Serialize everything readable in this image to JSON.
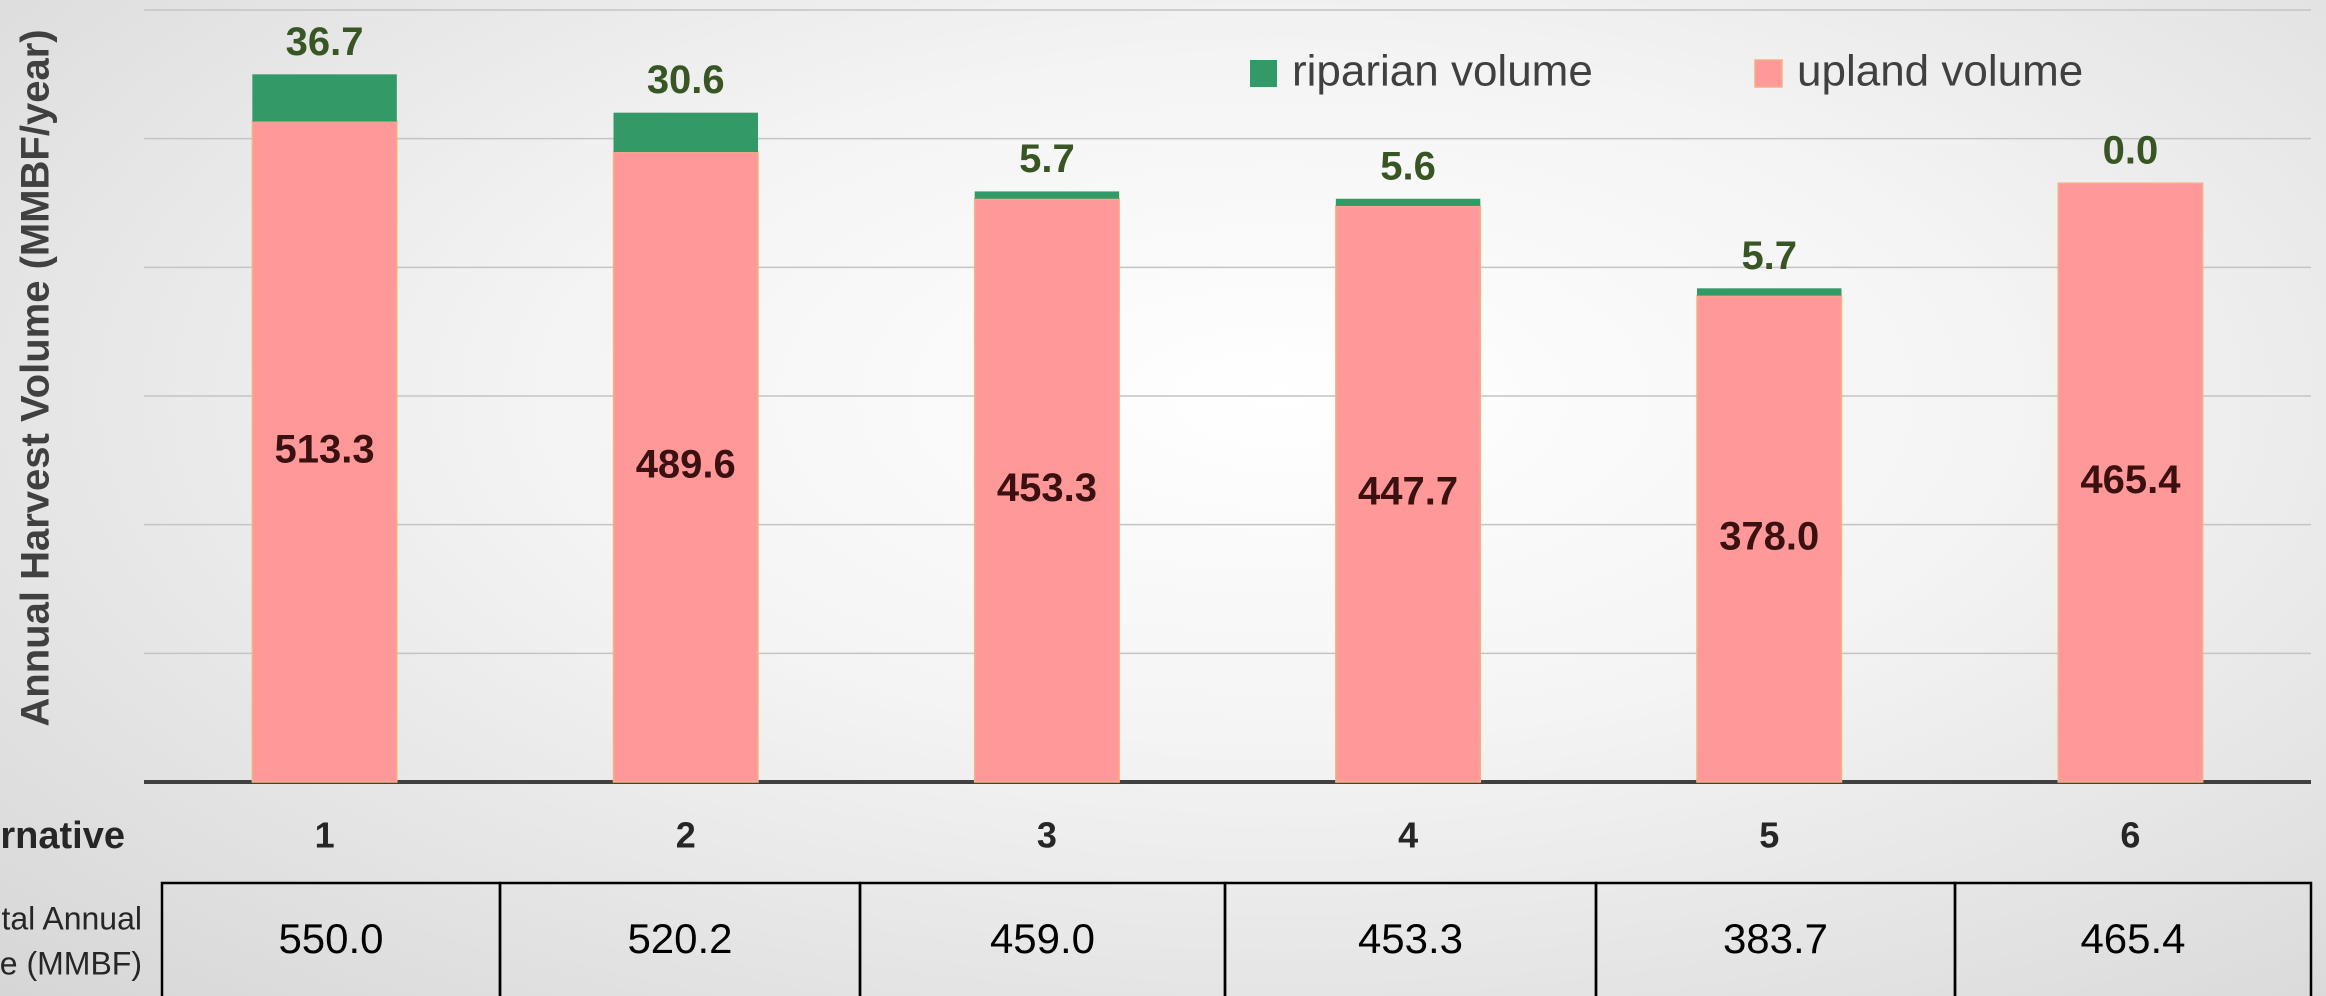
{
  "chart_data": {
    "type": "stacked_bar",
    "y_label": "Annual Harvest Volume (MMBF/year)",
    "x_label": "rnative",
    "categories": [
      "1",
      "2",
      "3",
      "4",
      "5",
      "6"
    ],
    "series": [
      {
        "name": "upland volume",
        "color": "#ff9999",
        "values": [
          513.3,
          489.6,
          453.3,
          447.7,
          378.0,
          465.4
        ],
        "value_labels": [
          "513.3",
          "489.6",
          "453.3",
          "447.7",
          "378.0",
          "465.4"
        ]
      },
      {
        "name": "riparian volume",
        "color": "#339966",
        "values": [
          36.7,
          30.6,
          5.7,
          5.6,
          5.7,
          0.0
        ],
        "value_labels": [
          "36.7",
          "30.6",
          "5.7",
          "5.6",
          "5.7",
          "0.0"
        ]
      }
    ],
    "legend_order": [
      1,
      0
    ],
    "ylim": [
      0,
      600
    ],
    "yticks": [
      0,
      100,
      200,
      300,
      400,
      500,
      600
    ],
    "grid": true,
    "table": {
      "row_label": [
        "tal Annual",
        "e (MMBF)"
      ],
      "values": [
        550.0,
        520.2,
        459.0,
        453.3,
        383.7,
        465.4
      ],
      "value_labels": [
        "550.0",
        "520.2",
        "459.0",
        "453.3",
        "383.7",
        "465.4"
      ]
    }
  }
}
